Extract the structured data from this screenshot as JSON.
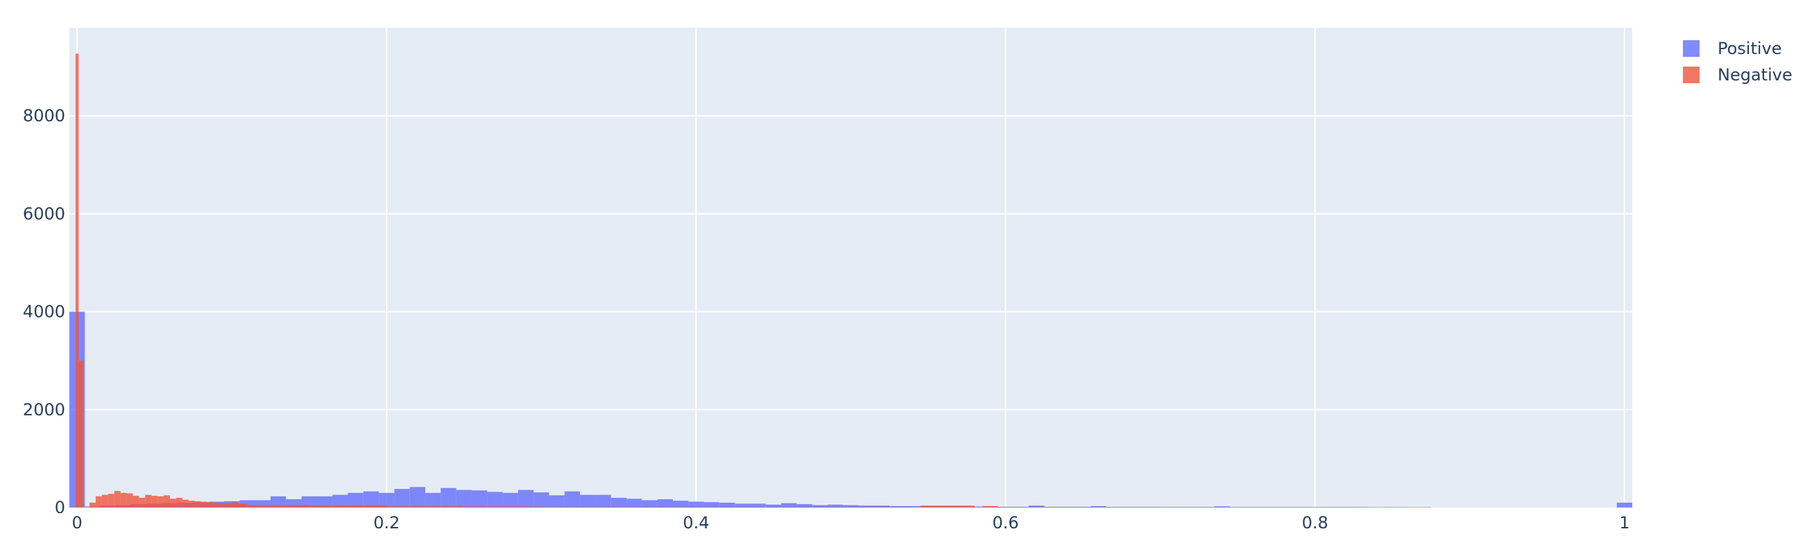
{
  "chart_data": {
    "type": "bar",
    "subtype": "overlaid-histogram",
    "title": "",
    "xlabel": "",
    "ylabel": "",
    "xlim": [
      -0.005,
      1.005
    ],
    "ylim": [
      0,
      9800
    ],
    "x_ticks": [
      0,
      0.2,
      0.4,
      0.6,
      0.8,
      1
    ],
    "x_tick_labels": [
      "0",
      "0.2",
      "0.4",
      "0.6",
      "0.8",
      "1"
    ],
    "y_ticks": [
      0,
      2000,
      4000,
      6000,
      8000
    ],
    "y_tick_labels": [
      "0",
      "2000",
      "4000",
      "6000",
      "8000"
    ],
    "grid": true,
    "legend_position": "top-right",
    "plot_background": "#E5ECF6",
    "series": [
      {
        "name": "Positive",
        "color": "#636EFA",
        "opacity": 0.8,
        "bins": [
          [
            -0.005,
            0.005,
            4000
          ],
          [
            0.005,
            0.015,
            20
          ],
          [
            0.015,
            0.025,
            40
          ],
          [
            0.025,
            0.035,
            50
          ],
          [
            0.035,
            0.045,
            70
          ],
          [
            0.045,
            0.055,
            80
          ],
          [
            0.055,
            0.065,
            90
          ],
          [
            0.065,
            0.075,
            100
          ],
          [
            0.075,
            0.085,
            110
          ],
          [
            0.085,
            0.095,
            120
          ],
          [
            0.095,
            0.105,
            130
          ],
          [
            0.105,
            0.125,
            150
          ],
          [
            0.125,
            0.135,
            230
          ],
          [
            0.135,
            0.145,
            170
          ],
          [
            0.145,
            0.165,
            230
          ],
          [
            0.165,
            0.175,
            260
          ],
          [
            0.175,
            0.185,
            300
          ],
          [
            0.185,
            0.195,
            330
          ],
          [
            0.195,
            0.205,
            300
          ],
          [
            0.205,
            0.215,
            380
          ],
          [
            0.215,
            0.225,
            420
          ],
          [
            0.225,
            0.235,
            300
          ],
          [
            0.235,
            0.245,
            400
          ],
          [
            0.245,
            0.255,
            360
          ],
          [
            0.255,
            0.265,
            350
          ],
          [
            0.265,
            0.275,
            320
          ],
          [
            0.275,
            0.285,
            300
          ],
          [
            0.285,
            0.295,
            360
          ],
          [
            0.295,
            0.305,
            310
          ],
          [
            0.305,
            0.315,
            250
          ],
          [
            0.315,
            0.325,
            330
          ],
          [
            0.325,
            0.335,
            260
          ],
          [
            0.335,
            0.345,
            260
          ],
          [
            0.345,
            0.355,
            200
          ],
          [
            0.355,
            0.365,
            180
          ],
          [
            0.365,
            0.375,
            150
          ],
          [
            0.375,
            0.385,
            170
          ],
          [
            0.385,
            0.395,
            140
          ],
          [
            0.395,
            0.405,
            120
          ],
          [
            0.405,
            0.415,
            110
          ],
          [
            0.415,
            0.425,
            100
          ],
          [
            0.425,
            0.445,
            80
          ],
          [
            0.445,
            0.455,
            60
          ],
          [
            0.455,
            0.465,
            90
          ],
          [
            0.465,
            0.475,
            70
          ],
          [
            0.475,
            0.485,
            50
          ],
          [
            0.485,
            0.495,
            60
          ],
          [
            0.495,
            0.505,
            50
          ],
          [
            0.505,
            0.525,
            40
          ],
          [
            0.525,
            0.545,
            30
          ],
          [
            0.545,
            0.575,
            25
          ],
          [
            0.575,
            0.595,
            20
          ],
          [
            0.595,
            0.615,
            15
          ],
          [
            0.615,
            0.625,
            40
          ],
          [
            0.625,
            0.655,
            15
          ],
          [
            0.655,
            0.665,
            30
          ],
          [
            0.665,
            0.735,
            12
          ],
          [
            0.735,
            0.745,
            25
          ],
          [
            0.745,
            0.835,
            10
          ],
          [
            0.845,
            0.875,
            8
          ],
          [
            0.995,
            1.005,
            100
          ]
        ]
      },
      {
        "name": "Negative",
        "color": "#EF553B",
        "opacity": 0.8,
        "bins": [
          [
            -0.001,
            0.001,
            9270
          ],
          [
            0.001,
            0.004,
            3000
          ],
          [
            0.008,
            0.012,
            100
          ],
          [
            0.012,
            0.016,
            230
          ],
          [
            0.016,
            0.02,
            260
          ],
          [
            0.02,
            0.024,
            280
          ],
          [
            0.024,
            0.028,
            340
          ],
          [
            0.028,
            0.032,
            300
          ],
          [
            0.032,
            0.036,
            290
          ],
          [
            0.036,
            0.04,
            240
          ],
          [
            0.04,
            0.044,
            200
          ],
          [
            0.044,
            0.048,
            260
          ],
          [
            0.048,
            0.052,
            240
          ],
          [
            0.052,
            0.056,
            230
          ],
          [
            0.056,
            0.06,
            250
          ],
          [
            0.06,
            0.064,
            180
          ],
          [
            0.064,
            0.068,
            200
          ],
          [
            0.068,
            0.072,
            160
          ],
          [
            0.072,
            0.076,
            140
          ],
          [
            0.076,
            0.08,
            130
          ],
          [
            0.08,
            0.084,
            120
          ],
          [
            0.084,
            0.088,
            110
          ],
          [
            0.088,
            0.092,
            100
          ],
          [
            0.092,
            0.096,
            100
          ],
          [
            0.096,
            0.1,
            90
          ],
          [
            0.1,
            0.104,
            110
          ],
          [
            0.104,
            0.11,
            80
          ],
          [
            0.11,
            0.15,
            50
          ],
          [
            0.15,
            0.2,
            40
          ],
          [
            0.2,
            0.25,
            25
          ],
          [
            0.25,
            0.3,
            20
          ],
          [
            0.3,
            0.35,
            15
          ],
          [
            0.35,
            0.4,
            15
          ],
          [
            0.4,
            0.54,
            12
          ],
          [
            0.545,
            0.58,
            40
          ],
          [
            0.585,
            0.595,
            30
          ],
          [
            0.595,
            0.7,
            10
          ],
          [
            0.7,
            0.86,
            8
          ]
        ]
      }
    ]
  }
}
